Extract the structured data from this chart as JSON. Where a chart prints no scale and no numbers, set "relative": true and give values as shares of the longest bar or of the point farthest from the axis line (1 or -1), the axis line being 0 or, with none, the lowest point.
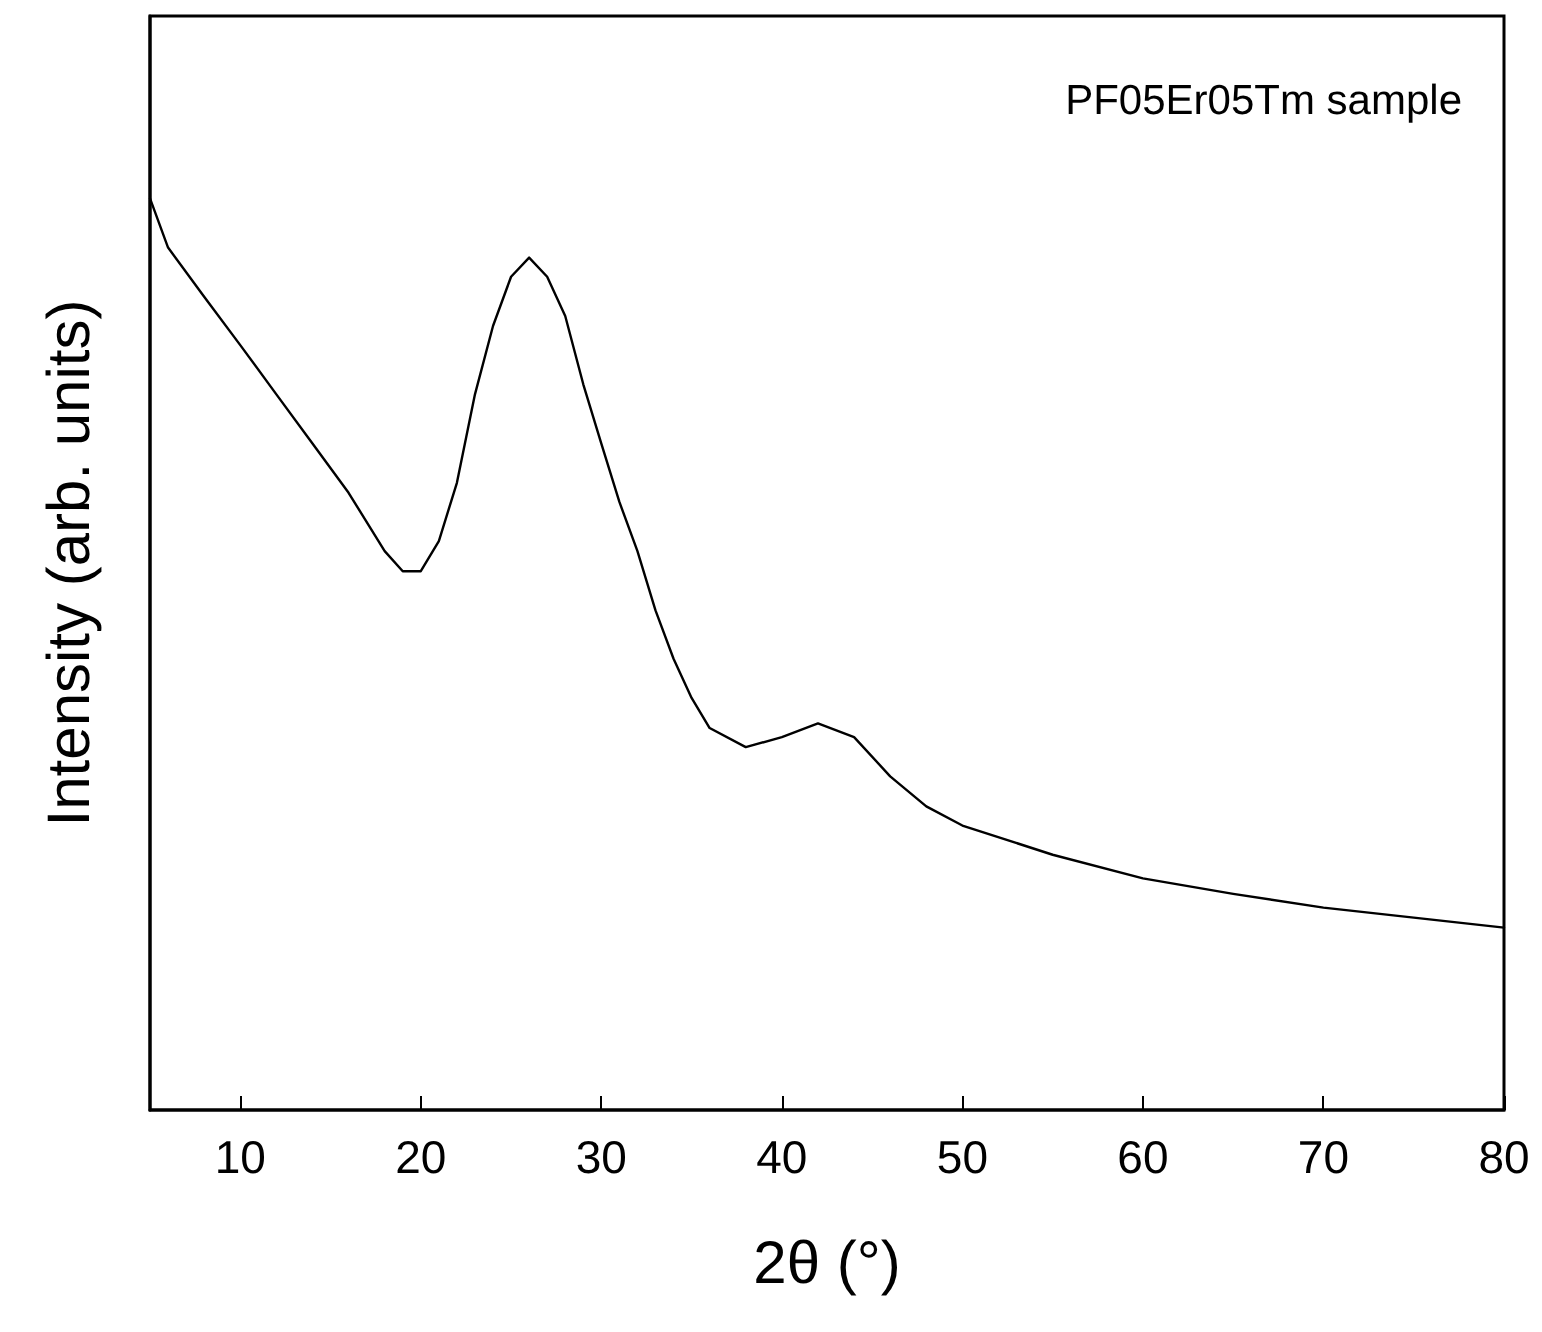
{
  "chart_data": {
    "type": "line",
    "relative": true,
    "xlabel": "2θ (°)",
    "ylabel": "Intensity (arb. units)",
    "annotations": [
      "PF05Er05Tm sample"
    ],
    "xlim": [
      5,
      80
    ],
    "xticks": [
      10,
      20,
      30,
      40,
      50,
      60,
      70,
      80
    ],
    "grid": false,
    "marker": "none",
    "line_style": "solid",
    "series": [
      {
        "color": "#000000",
        "x": [
          5,
          6,
          8,
          10,
          12,
          14,
          16,
          18,
          19,
          20,
          21,
          22,
          23,
          24,
          25,
          26,
          27,
          28,
          29,
          30,
          31,
          32,
          33,
          34,
          35,
          36,
          38,
          40,
          42,
          44,
          46,
          48,
          50,
          55,
          60,
          65,
          70,
          75,
          80
        ],
        "values": [
          1.0,
          0.946,
          0.892,
          0.839,
          0.785,
          0.731,
          0.677,
          0.613,
          0.591,
          0.591,
          0.624,
          0.688,
          0.785,
          0.86,
          0.914,
          0.935,
          0.914,
          0.871,
          0.796,
          0.731,
          0.667,
          0.613,
          0.548,
          0.495,
          0.452,
          0.419,
          0.398,
          0.409,
          0.424,
          0.409,
          0.366,
          0.333,
          0.312,
          0.28,
          0.254,
          0.237,
          0.222,
          0.211,
          0.2
        ]
      }
    ]
  }
}
